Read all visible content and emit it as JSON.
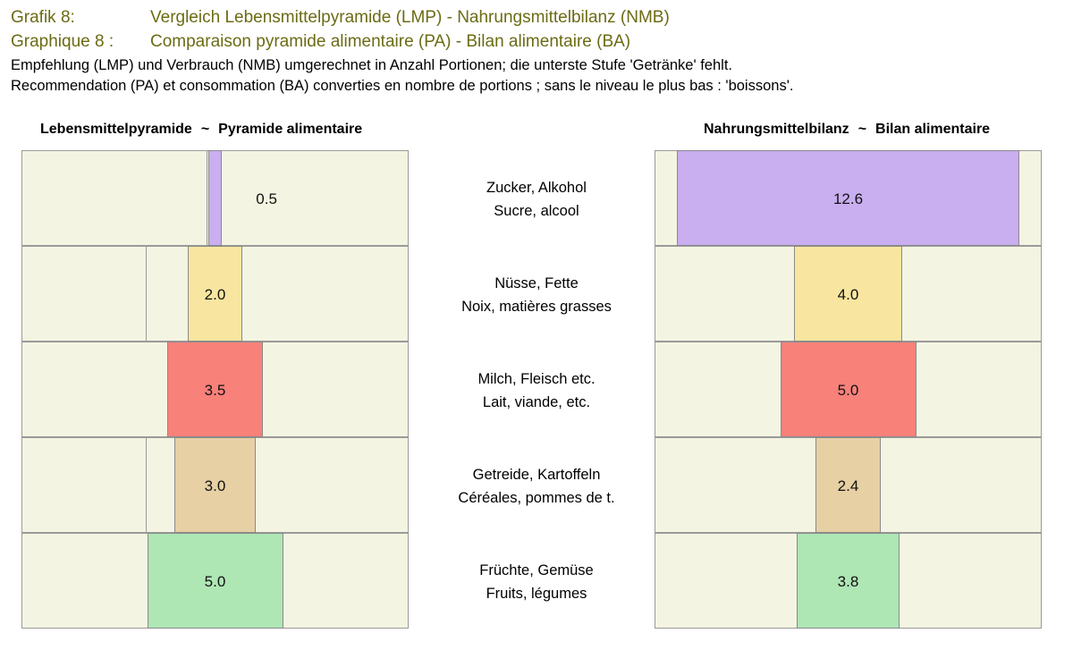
{
  "header": {
    "line1_label": "Grafik 8:",
    "line1_title": "Vergleich Lebensmittelpyramide (LMP) - Nahrungsmittelbilanz (NMB)",
    "line2_label": "Graphique 8 :",
    "line2_title": "Comparaison pyramide alimentaire (PA) - Bilan alimentaire (BA)",
    "sub1": "Empfehlung (LMP) und Verbrauch (NMB) umgerechnet in Anzahl Portionen; die unterste Stufe 'Getränke' fehlt.",
    "sub2": "Recommendation (PA) et consommation (BA) converties en nombre de portions ; sans le niveau le plus bas : 'boissons'."
  },
  "chart_data": {
    "type": "bar",
    "orientation": "horizontal-centered-pyramid",
    "panels": [
      {
        "title_de": "Lebensmittelpyramide",
        "separator": "~",
        "title_fr": "Pyramide alimentaire",
        "xlim": [
          0,
          15
        ]
      },
      {
        "title_de": "Nahrungsmittelbilanz",
        "separator": "~",
        "title_fr": "Bilan alimentaire",
        "xlim": [
          0,
          15
        ]
      }
    ],
    "categories": [
      {
        "de": "Zucker, Alkohol",
        "fr": "Sucre, alcool",
        "color": "#c9aef0"
      },
      {
        "de": "Nüsse, Fette",
        "fr": "Noix, matières grasses",
        "color": "#f8e6a0"
      },
      {
        "de": "Milch, Fleisch etc.",
        "fr": "Lait, viande, etc.",
        "color": "#f8817a"
      },
      {
        "de": "Getreide, Kartoffeln",
        "fr": "Céréales, pommes de t.",
        "color": "#e6d0a4"
      },
      {
        "de": "Früchte, Gemüse",
        "fr": "Fruits, légumes",
        "color": "#aee6b4"
      }
    ],
    "series": [
      {
        "values": [
          0.5,
          2.0,
          3.5,
          3.0,
          5.0
        ],
        "labels": [
          "0.5",
          "2.0",
          "3.5",
          "3.0",
          "5.0"
        ]
      },
      {
        "values": [
          12.6,
          4.0,
          5.0,
          2.4,
          3.8
        ],
        "labels": [
          "12.6",
          "4.0",
          "5.0",
          "2.4",
          "3.8"
        ]
      }
    ],
    "grid": true
  }
}
